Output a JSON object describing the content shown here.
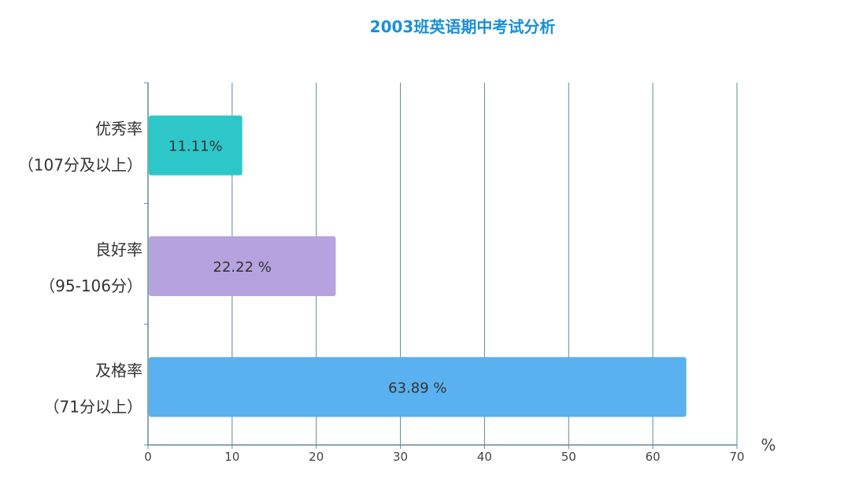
{
  "chart_data": {
    "type": "bar",
    "orientation": "horizontal",
    "title": "2003班英语期中考试分析",
    "categories": [
      {
        "line1": "优秀率",
        "line2": "（107分及以上）"
      },
      {
        "line1": "良好率",
        "line2": "（95-106分）"
      },
      {
        "line1": "及格率",
        "line2": "（71分以上）"
      }
    ],
    "values": [
      11.11,
      22.22,
      63.89
    ],
    "data_labels": [
      "11.11%",
      "22.22 %",
      "63.89 %"
    ],
    "colors": [
      "#2ec7c9",
      "#b6a2de",
      "#5ab1ef"
    ],
    "x_ticks": [
      "0",
      "10",
      "20",
      "30",
      "40",
      "50",
      "60",
      "70"
    ],
    "xlim": [
      0,
      70
    ],
    "xlabel": "%",
    "grid": true
  }
}
